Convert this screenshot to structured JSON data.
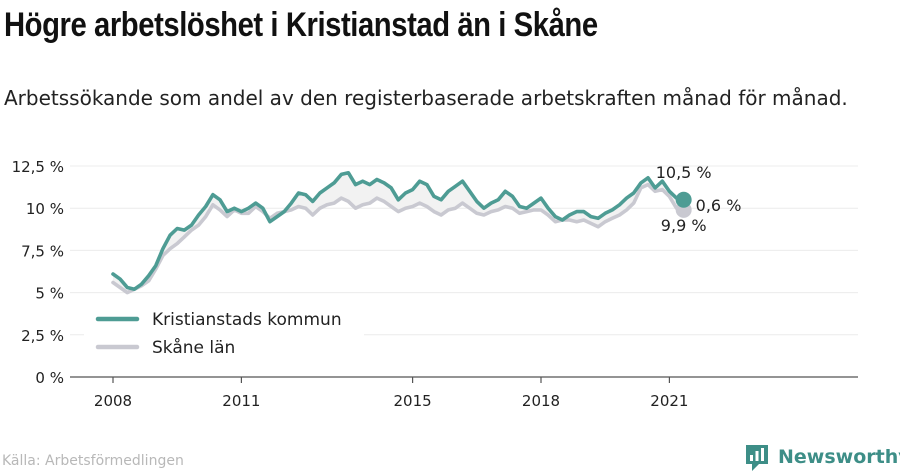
{
  "title": "Högre arbetslöshet i Kristianstad än i Skåne",
  "subtitle": "Arbetssökande som andel av den registerbaserade arbetskraften månad för månad.",
  "source": "Källa: Arbetsförmedlingen",
  "brand": "Newsworthy",
  "chart_data": {
    "type": "line",
    "title": "Högre arbetslöshet i Kristianstad än i Skåne",
    "subtitle": "Arbetssökande som andel av den registerbaserade arbetskraften månad för månad.",
    "xlabel": "",
    "ylabel": "",
    "x_range": [
      "2008-01",
      "2021-05"
    ],
    "ylim": [
      0,
      12.5
    ],
    "y_ticks": [
      0,
      2.5,
      5,
      7.5,
      10,
      12.5
    ],
    "y_tick_labels": [
      "0 %",
      "2,5 %",
      "5 %",
      "7,5 %",
      "10 %",
      "12,5 %"
    ],
    "x_tick_labels": [
      "2008",
      "2011",
      "2015",
      "2018",
      "2021"
    ],
    "legend_position": "bottom-left",
    "gap_fill": true,
    "colors": {
      "kommun": "#4e9c94",
      "lan": "#c9c9d1",
      "axis": "#555555",
      "brand": "#3d8e87"
    },
    "series": [
      {
        "name": "Kristianstads kommun",
        "points": [
          [
            "2008-01",
            6.1
          ],
          [
            "2008-03",
            5.8
          ],
          [
            "2008-05",
            5.3
          ],
          [
            "2008-07",
            5.2
          ],
          [
            "2008-09",
            5.5
          ],
          [
            "2008-11",
            6.0
          ],
          [
            "2009-01",
            6.6
          ],
          [
            "2009-03",
            7.6
          ],
          [
            "2009-05",
            8.4
          ],
          [
            "2009-07",
            8.8
          ],
          [
            "2009-09",
            8.7
          ],
          [
            "2009-11",
            9.0
          ],
          [
            "2010-01",
            9.6
          ],
          [
            "2010-03",
            10.1
          ],
          [
            "2010-05",
            10.8
          ],
          [
            "2010-07",
            10.5
          ],
          [
            "2010-09",
            9.8
          ],
          [
            "2010-11",
            10.0
          ],
          [
            "2011-01",
            9.8
          ],
          [
            "2011-03",
            10.0
          ],
          [
            "2011-05",
            10.3
          ],
          [
            "2011-07",
            10.0
          ],
          [
            "2011-09",
            9.2
          ],
          [
            "2011-11",
            9.5
          ],
          [
            "2012-01",
            9.8
          ],
          [
            "2012-03",
            10.3
          ],
          [
            "2012-05",
            10.9
          ],
          [
            "2012-07",
            10.8
          ],
          [
            "2012-09",
            10.4
          ],
          [
            "2012-11",
            10.9
          ],
          [
            "2013-01",
            11.2
          ],
          [
            "2013-03",
            11.5
          ],
          [
            "2013-05",
            12.0
          ],
          [
            "2013-07",
            12.1
          ],
          [
            "2013-09",
            11.4
          ],
          [
            "2013-11",
            11.6
          ],
          [
            "2014-01",
            11.4
          ],
          [
            "2014-03",
            11.7
          ],
          [
            "2014-05",
            11.5
          ],
          [
            "2014-07",
            11.2
          ],
          [
            "2014-09",
            10.5
          ],
          [
            "2014-11",
            10.9
          ],
          [
            "2015-01",
            11.1
          ],
          [
            "2015-03",
            11.6
          ],
          [
            "2015-05",
            11.4
          ],
          [
            "2015-07",
            10.7
          ],
          [
            "2015-09",
            10.5
          ],
          [
            "2015-11",
            11.0
          ],
          [
            "2016-01",
            11.3
          ],
          [
            "2016-03",
            11.6
          ],
          [
            "2016-05",
            11.0
          ],
          [
            "2016-07",
            10.4
          ],
          [
            "2016-09",
            10.0
          ],
          [
            "2016-11",
            10.3
          ],
          [
            "2017-01",
            10.5
          ],
          [
            "2017-03",
            11.0
          ],
          [
            "2017-05",
            10.7
          ],
          [
            "2017-07",
            10.1
          ],
          [
            "2017-09",
            10.0
          ],
          [
            "2017-11",
            10.3
          ],
          [
            "2018-01",
            10.6
          ],
          [
            "2018-03",
            10.0
          ],
          [
            "2018-05",
            9.5
          ],
          [
            "2018-07",
            9.3
          ],
          [
            "2018-09",
            9.6
          ],
          [
            "2018-11",
            9.8
          ],
          [
            "2019-01",
            9.8
          ],
          [
            "2019-03",
            9.5
          ],
          [
            "2019-05",
            9.4
          ],
          [
            "2019-07",
            9.7
          ],
          [
            "2019-09",
            9.9
          ],
          [
            "2019-11",
            10.2
          ],
          [
            "2020-01",
            10.6
          ],
          [
            "2020-03",
            10.9
          ],
          [
            "2020-05",
            11.5
          ],
          [
            "2020-07",
            11.8
          ],
          [
            "2020-09",
            11.2
          ],
          [
            "2020-11",
            11.6
          ],
          [
            "2021-01",
            11.0
          ],
          [
            "2021-03",
            10.6
          ],
          [
            "2021-05",
            10.5
          ]
        ]
      },
      {
        "name": "Skåne län",
        "points": [
          [
            "2008-01",
            5.6
          ],
          [
            "2008-03",
            5.3
          ],
          [
            "2008-05",
            5.0
          ],
          [
            "2008-07",
            5.2
          ],
          [
            "2008-09",
            5.4
          ],
          [
            "2008-11",
            5.7
          ],
          [
            "2009-01",
            6.4
          ],
          [
            "2009-03",
            7.2
          ],
          [
            "2009-05",
            7.6
          ],
          [
            "2009-07",
            7.9
          ],
          [
            "2009-09",
            8.3
          ],
          [
            "2009-11",
            8.7
          ],
          [
            "2010-01",
            9.0
          ],
          [
            "2010-03",
            9.5
          ],
          [
            "2010-05",
            10.2
          ],
          [
            "2010-07",
            9.9
          ],
          [
            "2010-09",
            9.5
          ],
          [
            "2010-11",
            9.9
          ],
          [
            "2011-01",
            9.7
          ],
          [
            "2011-03",
            9.7
          ],
          [
            "2011-05",
            10.1
          ],
          [
            "2011-07",
            9.8
          ],
          [
            "2011-09",
            9.4
          ],
          [
            "2011-11",
            9.7
          ],
          [
            "2012-01",
            9.8
          ],
          [
            "2012-03",
            9.9
          ],
          [
            "2012-05",
            10.1
          ],
          [
            "2012-07",
            10.0
          ],
          [
            "2012-09",
            9.6
          ],
          [
            "2012-11",
            10.0
          ],
          [
            "2013-01",
            10.2
          ],
          [
            "2013-03",
            10.3
          ],
          [
            "2013-05",
            10.6
          ],
          [
            "2013-07",
            10.4
          ],
          [
            "2013-09",
            10.0
          ],
          [
            "2013-11",
            10.2
          ],
          [
            "2014-01",
            10.3
          ],
          [
            "2014-03",
            10.6
          ],
          [
            "2014-05",
            10.4
          ],
          [
            "2014-07",
            10.1
          ],
          [
            "2014-09",
            9.8
          ],
          [
            "2014-11",
            10.0
          ],
          [
            "2015-01",
            10.1
          ],
          [
            "2015-03",
            10.3
          ],
          [
            "2015-05",
            10.1
          ],
          [
            "2015-07",
            9.8
          ],
          [
            "2015-09",
            9.6
          ],
          [
            "2015-11",
            9.9
          ],
          [
            "2016-01",
            10.0
          ],
          [
            "2016-03",
            10.3
          ],
          [
            "2016-05",
            10.0
          ],
          [
            "2016-07",
            9.7
          ],
          [
            "2016-09",
            9.6
          ],
          [
            "2016-11",
            9.8
          ],
          [
            "2017-01",
            9.9
          ],
          [
            "2017-03",
            10.1
          ],
          [
            "2017-05",
            10.0
          ],
          [
            "2017-07",
            9.7
          ],
          [
            "2017-09",
            9.8
          ],
          [
            "2017-11",
            9.9
          ],
          [
            "2018-01",
            9.9
          ],
          [
            "2018-03",
            9.6
          ],
          [
            "2018-05",
            9.2
          ],
          [
            "2018-07",
            9.3
          ],
          [
            "2018-09",
            9.3
          ],
          [
            "2018-11",
            9.2
          ],
          [
            "2019-01",
            9.3
          ],
          [
            "2019-03",
            9.1
          ],
          [
            "2019-05",
            8.9
          ],
          [
            "2019-07",
            9.2
          ],
          [
            "2019-09",
            9.4
          ],
          [
            "2019-11",
            9.6
          ],
          [
            "2020-01",
            9.9
          ],
          [
            "2020-03",
            10.3
          ],
          [
            "2020-05",
            11.2
          ],
          [
            "2020-07",
            11.4
          ],
          [
            "2020-09",
            11.0
          ],
          [
            "2020-11",
            11.1
          ],
          [
            "2021-01",
            10.7
          ],
          [
            "2021-03",
            10.0
          ],
          [
            "2021-05",
            9.9
          ]
        ]
      }
    ],
    "end_labels": {
      "kommun": "10,5 %",
      "lan": "9,9 %",
      "difference": "0,6 %"
    }
  }
}
